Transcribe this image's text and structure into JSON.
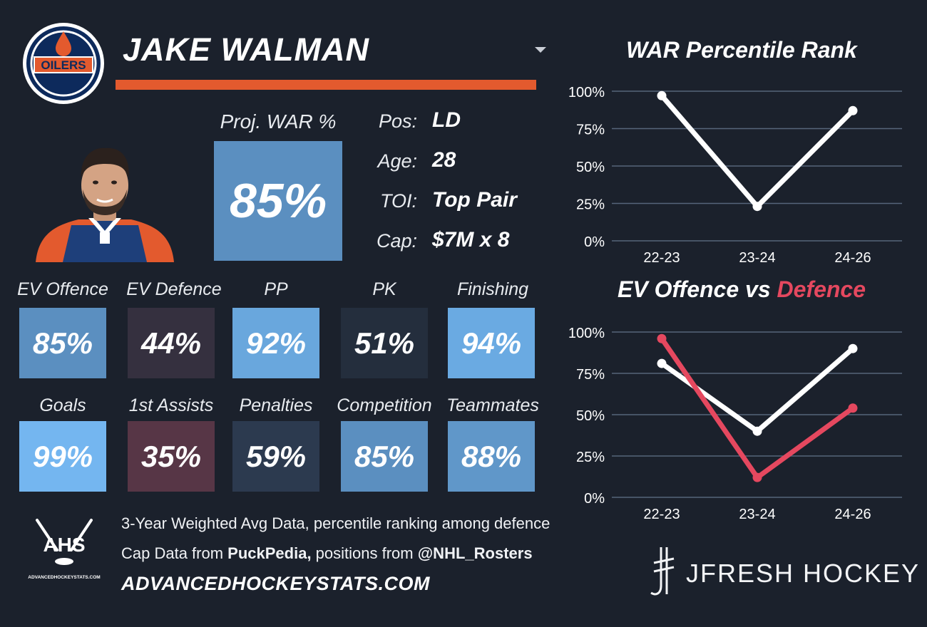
{
  "player": {
    "name": "JAKE WALMAN",
    "team_logo_text": "OILERS"
  },
  "projection": {
    "label": "Proj. WAR %",
    "value": "85%"
  },
  "info": [
    {
      "label": "Pos:",
      "value": "LD"
    },
    {
      "label": "Age:",
      "value": "28"
    },
    {
      "label": "TOI:",
      "value": "Top Pair"
    },
    {
      "label": "Cap:",
      "value": "$7M x 8"
    }
  ],
  "metrics": [
    {
      "label": "EV Offence",
      "value": "85%",
      "color": "#5b8fc0"
    },
    {
      "label": "EV Defence",
      "value": "44%",
      "color": "#35303f"
    },
    {
      "label": "PP",
      "value": "92%",
      "color": "#69a7dd"
    },
    {
      "label": "PK",
      "value": "51%",
      "color": "#242e3d"
    },
    {
      "label": "Finishing",
      "value": "94%",
      "color": "#6aaae2"
    },
    {
      "label": "Goals",
      "value": "99%",
      "color": "#74b6f0"
    },
    {
      "label": "1st Assists",
      "value": "35%",
      "color": "#573646"
    },
    {
      "label": "Penalties",
      "value": "59%",
      "color": "#2c3a4f"
    },
    {
      "label": "Competition",
      "value": "85%",
      "color": "#5b8fc0"
    },
    {
      "label": "Teammates",
      "value": "88%",
      "color": "#6097c9"
    }
  ],
  "footer": {
    "line1": "3-Year Weighted Avg Data, percentile ranking among defence",
    "line2_prefix": "Cap Data from ",
    "line2_source": "PuckPedia,",
    "line2_middle": " positions from ",
    "line2_handle": "@NHL_Rosters",
    "site": "ADVANCEDHOCKEYSTATS.COM",
    "ahs_logo_text": "AHS",
    "ahs_logo_caption": "ADVANCEDHOCKEYSTATS.COM",
    "brand": "JFRESH HOCKEY"
  },
  "colors": {
    "accent_orange": "#e35a2e",
    "line_white": "#ffffff",
    "line_red": "#e5485f",
    "gridline": "#56657a",
    "background": "#1b212c"
  },
  "chart_data": [
    {
      "type": "line",
      "title": "WAR Percentile Rank",
      "x": [
        "22-23",
        "23-24",
        "24-26"
      ],
      "series": [
        {
          "values": [
            97,
            23,
            87
          ],
          "color": "#ffffff"
        }
      ],
      "ylim": [
        0,
        100
      ],
      "yticks": [
        "0%",
        "25%",
        "50%",
        "75%",
        "100%"
      ],
      "grid": true
    },
    {
      "type": "line",
      "title_part1": "EV Offence vs ",
      "title_part2": "Defence",
      "x": [
        "22-23",
        "23-24",
        "24-26"
      ],
      "series": [
        {
          "name": "EV Offence",
          "values": [
            81,
            40,
            90
          ],
          "color": "#ffffff"
        },
        {
          "name": "Defence",
          "values": [
            96,
            12,
            54
          ],
          "color": "#e5485f"
        }
      ],
      "ylim": [
        0,
        100
      ],
      "yticks": [
        "0%",
        "25%",
        "50%",
        "75%",
        "100%"
      ],
      "grid": true
    }
  ]
}
